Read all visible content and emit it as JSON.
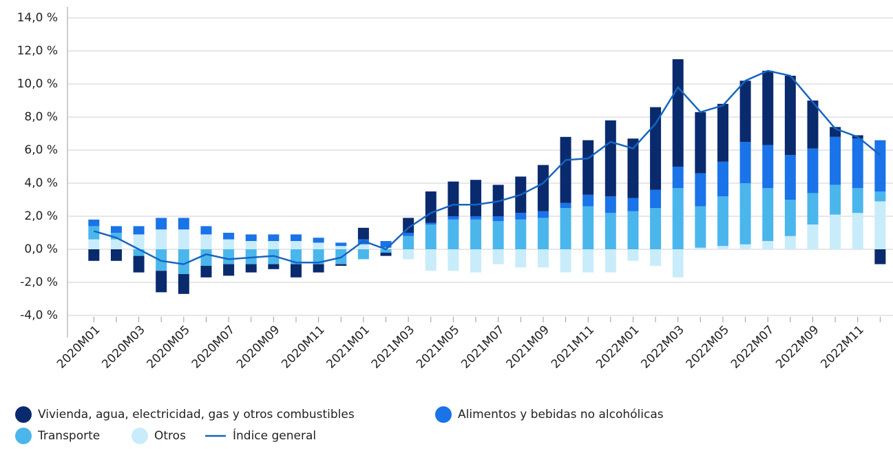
{
  "chart_data": {
    "type": "bar",
    "stacked": true,
    "grid": true,
    "categories": [
      "2020M01",
      null,
      "2020M03",
      null,
      "2020M05",
      null,
      "2020M07",
      null,
      "2020M09",
      null,
      "2020M11",
      null,
      "2021M01",
      null,
      "2021M03",
      null,
      "2021M05",
      null,
      "2021M07",
      null,
      "2021M09",
      null,
      "2021M11",
      null,
      "2022M01",
      null,
      "2022M03",
      null,
      "2022M05",
      null,
      "2022M07",
      null,
      "2022M09",
      null,
      "2022M11",
      null
    ],
    "ylim": [
      -4,
      14
    ],
    "yticks": [
      {
        "value": -4,
        "label": "-4,0 %"
      },
      {
        "value": -2,
        "label": "-2,0 %"
      },
      {
        "value": 0,
        "label": "0,0 %"
      },
      {
        "value": 2,
        "label": "2,0 %"
      },
      {
        "value": 4,
        "label": "4,0 %"
      },
      {
        "value": 6,
        "label": "6,0 %"
      },
      {
        "value": 8,
        "label": "8,0 %"
      },
      {
        "value": 10,
        "label": "10,0 %"
      },
      {
        "value": 12,
        "label": "12,0 %"
      },
      {
        "value": 14,
        "label": "14,0 %"
      }
    ],
    "series": [
      {
        "name": "Otros",
        "color": "#c9ecfb",
        "values": [
          0.6,
          0.6,
          0.9,
          1.2,
          1.2,
          0.9,
          0.6,
          0.5,
          0.5,
          0.5,
          0.4,
          0.2,
          0.3,
          0.1,
          -0.6,
          -1.3,
          -1.3,
          -1.4,
          -0.9,
          -1.1,
          -1.1,
          -1.4,
          -1.4,
          -1.4,
          -0.7,
          -1.0,
          -1.7,
          0.1,
          0.2,
          0.3,
          0.5,
          0.8,
          1.5,
          2.1,
          2.2,
          2.9
        ]
      },
      {
        "name": "Transporte",
        "color": "#4bb6ec",
        "values": [
          0.8,
          0.4,
          -0.4,
          -1.3,
          -1.5,
          -1.0,
          -0.9,
          -0.9,
          -0.9,
          -0.9,
          -0.9,
          -0.9,
          -0.6,
          -0.2,
          0.8,
          1.5,
          1.8,
          1.8,
          1.7,
          1.8,
          1.9,
          2.5,
          2.6,
          2.2,
          2.3,
          2.5,
          3.7,
          2.5,
          3.0,
          3.7,
          3.2,
          2.2,
          1.9,
          1.8,
          1.5,
          0.6
        ]
      },
      {
        "name": "Alimentos y bebidas no alcohólicas",
        "color": "#1a73e8",
        "values": [
          0.4,
          0.4,
          0.5,
          0.7,
          0.7,
          0.5,
          0.4,
          0.4,
          0.4,
          0.4,
          0.3,
          0.2,
          0.3,
          0.4,
          0.2,
          0.1,
          0.2,
          0.2,
          0.3,
          0.4,
          0.4,
          0.3,
          0.7,
          1.0,
          0.8,
          1.1,
          1.3,
          2.0,
          2.1,
          2.5,
          2.6,
          2.7,
          2.7,
          2.9,
          3.0,
          3.1
        ]
      },
      {
        "name": "Vivienda, agua, electricidad, gas y otros combustibles",
        "color": "#0a2a6e",
        "values": [
          -0.7,
          -0.7,
          -1.0,
          -1.3,
          -1.2,
          -0.7,
          -0.7,
          -0.5,
          -0.3,
          -0.8,
          -0.5,
          -0.1,
          0.7,
          -0.2,
          0.9,
          1.9,
          2.1,
          2.2,
          1.9,
          2.2,
          2.8,
          4.0,
          3.3,
          4.6,
          3.6,
          5.0,
          6.5,
          3.7,
          3.5,
          3.7,
          4.5,
          4.8,
          2.9,
          0.6,
          0.2,
          -0.9
        ]
      },
      {
        "name": "Índice general",
        "type": "line",
        "color": "#1565c0",
        "values": [
          1.1,
          0.7,
          0.0,
          -0.7,
          -0.9,
          -0.3,
          -0.6,
          -0.5,
          -0.4,
          -0.8,
          -0.8,
          -0.5,
          0.5,
          0.0,
          1.3,
          2.2,
          2.7,
          2.7,
          2.9,
          3.3,
          4.0,
          5.4,
          5.5,
          6.5,
          6.1,
          7.6,
          9.8,
          8.3,
          8.7,
          10.2,
          10.8,
          10.5,
          8.9,
          7.3,
          6.8,
          5.7
        ]
      }
    ],
    "legend_order": [
      3,
      2,
      1,
      0,
      4
    ]
  }
}
